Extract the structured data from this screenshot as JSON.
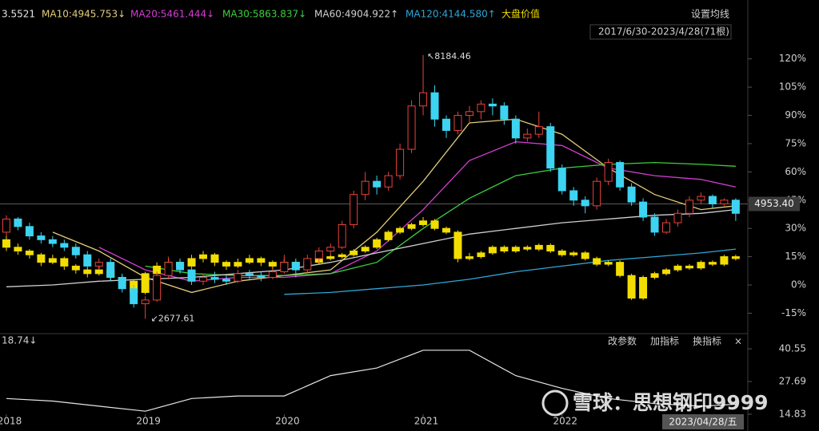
{
  "chart_data": {
    "type": "candlestick",
    "header_prefix": "3.5521",
    "settings_label": "设置均线",
    "range_label": "2017/6/30-2023/4/28(71根)",
    "buttons": [
      "改参数",
      "加指标",
      "换指标",
      "×"
    ],
    "xlim": [
      -0.55,
      63.7
    ],
    "xticks": [
      {
        "value": 0,
        "label": "2018"
      },
      {
        "value": 12,
        "label": "2019"
      },
      {
        "value": 24,
        "label": "2020"
      },
      {
        "value": 36,
        "label": "2021"
      },
      {
        "value": 48,
        "label": "2022"
      }
    ],
    "ylim": [
      -25,
      147
    ],
    "yticks": [
      {
        "value": 120,
        "label": "120%"
      },
      {
        "value": 105,
        "label": "105%"
      },
      {
        "value": 90,
        "label": "90%"
      },
      {
        "value": 75,
        "label": "75%"
      },
      {
        "value": 60,
        "label": "60%"
      },
      {
        "value": 45,
        "label": "45%"
      },
      {
        "value": 30,
        "label": "30%"
      },
      {
        "value": 15,
        "label": "15%"
      },
      {
        "value": 0,
        "label": "0%"
      },
      {
        "value": -15,
        "label": "-15%"
      }
    ],
    "crosshair": {
      "value": 43,
      "label": "4953.40"
    },
    "date_label": "2023/04/28/五",
    "high_label": "↖8184.46",
    "low_label": "↙2677.61",
    "series": [
      {
        "up_color": "#e8433b",
        "down_color": "#3dd4f2",
        "ohlc": [
          [
            28,
            37,
            26,
            35
          ],
          [
            35,
            36,
            29,
            31
          ],
          [
            31,
            33,
            24,
            26
          ],
          [
            26,
            28,
            22,
            24
          ],
          [
            24,
            26,
            20,
            22
          ],
          [
            22,
            24,
            18,
            20
          ],
          [
            20,
            22,
            14,
            16
          ],
          [
            16,
            18,
            8,
            10
          ],
          [
            10,
            14,
            8,
            12
          ],
          [
            12,
            14,
            2,
            4
          ],
          [
            4,
            6,
            -4,
            -2
          ],
          [
            -2,
            0,
            -12,
            -10
          ],
          [
            -10,
            -6,
            -18,
            -8
          ],
          [
            -8,
            7,
            -9,
            5
          ],
          [
            5,
            15,
            3,
            12
          ],
          [
            12,
            14,
            6,
            8
          ],
          [
            8,
            10,
            0,
            2
          ],
          [
            2,
            6,
            0,
            4
          ],
          [
            4,
            7,
            1,
            3
          ],
          [
            3,
            5,
            0,
            2
          ],
          [
            2,
            8,
            1,
            6
          ],
          [
            6,
            8,
            3,
            5
          ],
          [
            5,
            7,
            2,
            4
          ],
          [
            4,
            9,
            3,
            7
          ],
          [
            7,
            16,
            6,
            12
          ],
          [
            12,
            14,
            4,
            8
          ],
          [
            8,
            16,
            6,
            14
          ],
          [
            14,
            20,
            12,
            18
          ],
          [
            18,
            22,
            16,
            20
          ],
          [
            20,
            34,
            19,
            32
          ],
          [
            32,
            50,
            30,
            48
          ],
          [
            48,
            60,
            45,
            55
          ],
          [
            55,
            58,
            48,
            52
          ],
          [
            52,
            60,
            50,
            58
          ],
          [
            58,
            75,
            56,
            72
          ],
          [
            72,
            98,
            70,
            95
          ],
          [
            95,
            122,
            90,
            102
          ],
          [
            102,
            106,
            84,
            88
          ],
          [
            88,
            90,
            78,
            82
          ],
          [
            82,
            92,
            80,
            90
          ],
          [
            90,
            95,
            86,
            92
          ],
          [
            92,
            98,
            88,
            96
          ],
          [
            96,
            99,
            90,
            95
          ],
          [
            95,
            97,
            85,
            88
          ],
          [
            88,
            90,
            75,
            78
          ],
          [
            78,
            83,
            76,
            80
          ],
          [
            80,
            92,
            78,
            84
          ],
          [
            84,
            86,
            60,
            62
          ],
          [
            62,
            64,
            48,
            50
          ],
          [
            50,
            52,
            42,
            45
          ],
          [
            45,
            47,
            38,
            42
          ],
          [
            42,
            57,
            40,
            55
          ],
          [
            55,
            67,
            53,
            65
          ],
          [
            65,
            66,
            50,
            52
          ],
          [
            52,
            54,
            42,
            44
          ],
          [
            44,
            46,
            34,
            36
          ],
          [
            36,
            38,
            26,
            28
          ],
          [
            28,
            35,
            27,
            33
          ],
          [
            33,
            40,
            31,
            38
          ],
          [
            38,
            47,
            36,
            45
          ],
          [
            45,
            49,
            43,
            47
          ],
          [
            47,
            48,
            41,
            43
          ],
          [
            43,
            46,
            42,
            45
          ],
          [
            45,
            46,
            34,
            38
          ]
        ]
      },
      {
        "name": "大盘价值",
        "color": "#f2dd00",
        "ohlc": [
          [
            24,
            26,
            18,
            20
          ],
          [
            20,
            22,
            16,
            18
          ],
          [
            18,
            19,
            14,
            16
          ],
          [
            16,
            17,
            10,
            12
          ],
          [
            12,
            16,
            11,
            14
          ],
          [
            14,
            15,
            8,
            10
          ],
          [
            10,
            11,
            6,
            8
          ],
          [
            8,
            9,
            4,
            6
          ],
          [
            6,
            10,
            5,
            8
          ],
          [
            8,
            9,
            2,
            4
          ],
          [
            4,
            5,
            0,
            2
          ],
          [
            2,
            3,
            -6,
            -4
          ],
          [
            -4,
            7,
            -5,
            6
          ],
          [
            6,
            12,
            5,
            10
          ],
          [
            10,
            14,
            8,
            12
          ],
          [
            12,
            13,
            8,
            10
          ],
          [
            10,
            16,
            9,
            14
          ],
          [
            14,
            18,
            12,
            16
          ],
          [
            16,
            17,
            10,
            12
          ],
          [
            12,
            13,
            8,
            10
          ],
          [
            10,
            14,
            9,
            12
          ],
          [
            12,
            16,
            11,
            14
          ],
          [
            14,
            15,
            10,
            12
          ],
          [
            12,
            13,
            8,
            10
          ],
          [
            10,
            14,
            8,
            12
          ],
          [
            12,
            13,
            9,
            10
          ],
          [
            10,
            13,
            9,
            12
          ],
          [
            12,
            15,
            11,
            14
          ],
          [
            14,
            16,
            13,
            15
          ],
          [
            15,
            17,
            14,
            16
          ],
          [
            16,
            19,
            15,
            18
          ],
          [
            18,
            21,
            17,
            20
          ],
          [
            20,
            25,
            19,
            24
          ],
          [
            24,
            29,
            23,
            28
          ],
          [
            28,
            31,
            27,
            30
          ],
          [
            30,
            33,
            29,
            32
          ],
          [
            32,
            36,
            31,
            34
          ],
          [
            34,
            35,
            29,
            30
          ],
          [
            30,
            31,
            27,
            28
          ],
          [
            28,
            29,
            12,
            14
          ],
          [
            14,
            17,
            13,
            15
          ],
          [
            15,
            18,
            14,
            17
          ],
          [
            17,
            21,
            16,
            20
          ],
          [
            20,
            21,
            17,
            18
          ],
          [
            18,
            21,
            17,
            20
          ],
          [
            20,
            21,
            18,
            19
          ],
          [
            19,
            22,
            18,
            21
          ],
          [
            21,
            22,
            17,
            18
          ],
          [
            18,
            19,
            15,
            16
          ],
          [
            16,
            18,
            15,
            17
          ],
          [
            17,
            18,
            13,
            14
          ],
          [
            14,
            15,
            10,
            11
          ],
          [
            11,
            13,
            10,
            12
          ],
          [
            12,
            13,
            4,
            5
          ],
          [
            5,
            6,
            -8,
            -7
          ],
          [
            -7,
            5,
            -8,
            4
          ],
          [
            4,
            7,
            3,
            6
          ],
          [
            6,
            9,
            5,
            8
          ],
          [
            8,
            11,
            7,
            10
          ],
          [
            10,
            11,
            8,
            9
          ],
          [
            9,
            13,
            8,
            12
          ],
          [
            12,
            13,
            10,
            11
          ],
          [
            11,
            16,
            10,
            15
          ],
          [
            15,
            16,
            13,
            14
          ]
        ]
      }
    ],
    "line_x": [
      0,
      4,
      8,
      12,
      16,
      20,
      24,
      28,
      32,
      36,
      40,
      44,
      48,
      52,
      56,
      60,
      63
    ],
    "lines": [
      {
        "name": "MA10:4945.753↓",
        "color": "#e2cc78",
        "values": [
          null,
          28,
          18,
          4,
          -4,
          2,
          5,
          8,
          28,
          55,
          86,
          88,
          80,
          62,
          48,
          40,
          42
        ]
      },
      {
        "name": "MA20:5461.444↓",
        "color": "#d23ed2",
        "values": [
          null,
          null,
          20,
          8,
          2,
          4,
          4,
          6,
          18,
          40,
          66,
          76,
          74,
          62,
          58,
          56,
          52
        ]
      },
      {
        "name": "MA30:5863.837↓",
        "color": "#3ccf3c",
        "values": [
          null,
          null,
          null,
          10,
          6,
          5,
          5,
          6,
          12,
          30,
          46,
          58,
          62,
          64,
          65,
          64,
          63
        ]
      },
      {
        "name": "MA60:4904.922↑",
        "color": "#cfcfcf",
        "values": [
          -1,
          0,
          2,
          3,
          4,
          6,
          8,
          12,
          17,
          22,
          27,
          30,
          33,
          35,
          37,
          38,
          40
        ]
      },
      {
        "name": "MA120:4144.580↑",
        "color": "#2fa6d8",
        "values": [
          null,
          null,
          null,
          null,
          null,
          null,
          -5,
          -4,
          -2,
          0,
          3,
          7,
          10,
          13,
          15,
          17,
          19
        ]
      }
    ],
    "indicator": {
      "label": "18.74↓",
      "color": "#e6e6e6",
      "ylim": [
        14.5,
        45.9
      ],
      "yticks": [
        40.55,
        27.69,
        14.83
      ],
      "values": [
        21,
        20,
        18,
        16,
        21,
        22,
        22,
        30,
        33,
        40,
        40,
        30,
        25,
        21,
        19,
        18,
        18.74
      ]
    },
    "watermark": "雪球：思想钢印9999"
  }
}
